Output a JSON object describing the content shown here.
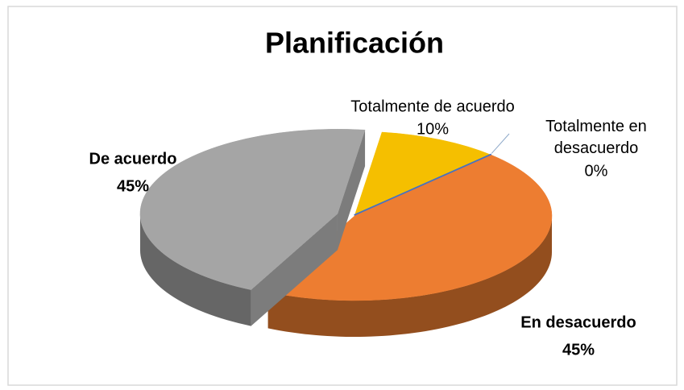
{
  "chart_data": {
    "type": "pie",
    "title": "Planificación",
    "categories": [
      "Totalmente de acuerdo",
      "Totalmente en desacuerdo",
      "En desacuerdo",
      "De acuerdo"
    ],
    "values": [
      10,
      0,
      45,
      45
    ],
    "value_labels": [
      "10%",
      "0%",
      "45%",
      "45%"
    ],
    "colors": [
      "#f5bf00",
      "#4472c4",
      "#ed7d31",
      "#a5a5a5"
    ]
  }
}
